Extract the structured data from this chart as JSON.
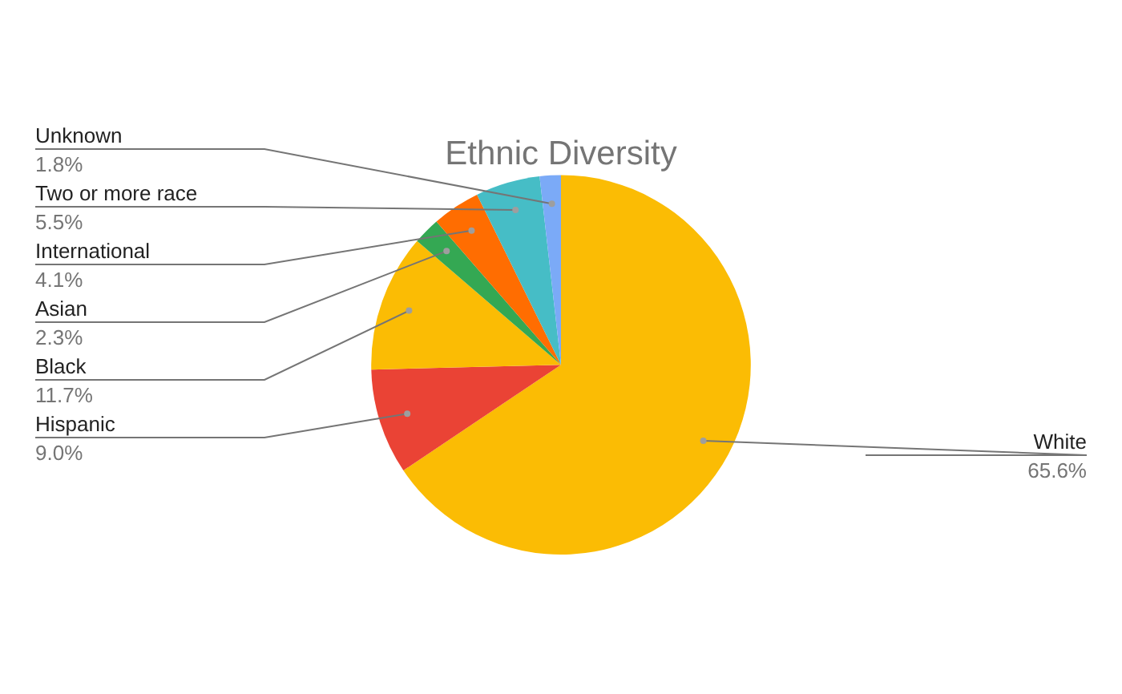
{
  "chart_data": {
    "type": "pie",
    "title": "Ethnic Diversity",
    "categories": [
      "White",
      "Hispanic",
      "Black",
      "Asian",
      "International",
      "Two or more race",
      "Unknown"
    ],
    "values": [
      65.6,
      9.0,
      11.7,
      2.3,
      4.1,
      5.5,
      1.8
    ],
    "value_labels": [
      "65.6%",
      "9.0%",
      "11.7%",
      "2.3%",
      "4.1%",
      "5.5%",
      "1.8%"
    ],
    "colors": [
      "#fbbc04",
      "#ea4335",
      "#fbbc04",
      "#34a853",
      "#ff6d01",
      "#46bdc6",
      "#7baaf7"
    ],
    "legend": false
  }
}
